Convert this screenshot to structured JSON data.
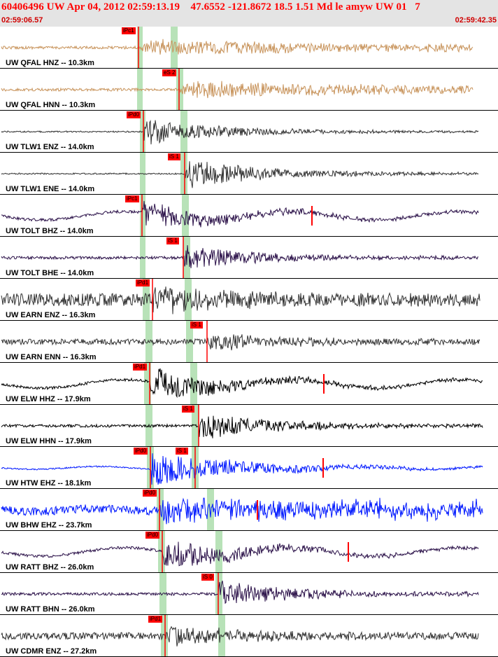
{
  "header": {
    "title": "60406496 UW Apr 04, 2012 02:59:13.19    47.6552 -121.8672 18.5 1.51 Md le amyw UW 01   7",
    "time_start": "02:59:06.57",
    "time_end": "02:59:42.35"
  },
  "colors": {
    "header_bg": "#e4e4e4",
    "title": "#ff0000",
    "pick": "#ff0000",
    "window": "#b8e2b8",
    "orange": "#c8945c",
    "gray": "#333333",
    "purple": "#2a1048",
    "black": "#000000",
    "blue": "#0018ff"
  },
  "traces": [
    {
      "label": "UW QFAL HNZ -- 10.3km",
      "pick": "iPc1",
      "color": "orange"
    },
    {
      "label": "UW QFAL HNN -- 10.3km",
      "pick": "eS 2",
      "color": "orange"
    },
    {
      "label": "UW TLW1 ENZ -- 14.0km",
      "pick": "iPd0",
      "color": "gray"
    },
    {
      "label": "UW TLW1 ENE -- 14.0km",
      "pick": "iS 1",
      "color": "gray"
    },
    {
      "label": "UW TOLT BHZ -- 14.0km",
      "pick": "iPc1",
      "color": "purple"
    },
    {
      "label": "UW TOLT BHE -- 14.0km",
      "pick": "iS 1",
      "color": "purple"
    },
    {
      "label": "UW EARN ENZ -- 16.3km",
      "pick": "iPd1",
      "color": "gray"
    },
    {
      "label": "UW EARN ENN -- 16.3km",
      "pick": "iS 1",
      "color": "gray"
    },
    {
      "label": "UW ELW HHZ -- 17.9km",
      "pick": "iPd1",
      "color": "black"
    },
    {
      "label": "UW ELW HHN -- 17.9km",
      "pick": "iS 1",
      "color": "black"
    },
    {
      "label": "UW HTW EHZ -- 18.1km",
      "pick": "iPd0",
      "pick2": "iS 1",
      "color": "blue"
    },
    {
      "label": "UW BHW EHZ -- 23.7km",
      "pick": "iPd0",
      "color": "blue"
    },
    {
      "label": "UW RATT BHZ -- 26.0km",
      "pick": "iPd0",
      "color": "purple"
    },
    {
      "label": "UW RATT BHN -- 26.0km",
      "pick": "iS 0",
      "color": "purple"
    },
    {
      "label": "UW CDMR ENZ -- 27.2km",
      "pick": "iPd1",
      "color": "gray"
    }
  ]
}
